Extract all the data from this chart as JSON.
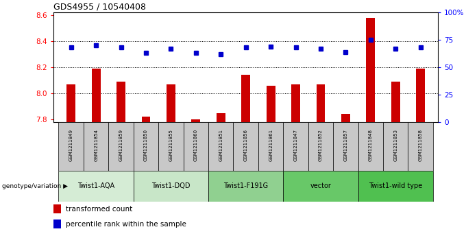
{
  "title": "GDS4955 / 10540408",
  "samples": [
    "GSM1211849",
    "GSM1211854",
    "GSM1211859",
    "GSM1211850",
    "GSM1211855",
    "GSM1211860",
    "GSM1211851",
    "GSM1211856",
    "GSM1211861",
    "GSM1211847",
    "GSM1211852",
    "GSM1211857",
    "GSM1211848",
    "GSM1211853",
    "GSM1211858"
  ],
  "red_values": [
    8.07,
    8.19,
    8.09,
    7.82,
    8.07,
    7.8,
    7.85,
    8.14,
    8.06,
    8.07,
    8.07,
    7.84,
    8.58,
    8.09,
    8.19
  ],
  "blue_values": [
    68,
    70,
    68,
    63,
    67,
    63,
    62,
    68,
    69,
    68,
    67,
    64,
    75,
    67,
    68
  ],
  "ylim_left": [
    7.78,
    8.62
  ],
  "ylim_right": [
    0,
    100
  ],
  "yticks_left": [
    7.8,
    8.0,
    8.2,
    8.4,
    8.6
  ],
  "yticks_right": [
    0,
    25,
    50,
    75,
    100
  ],
  "ytick_labels_right": [
    "0",
    "25",
    "50",
    "75",
    "100%"
  ],
  "groups": [
    {
      "label": "Twist1-AQA",
      "start": 0,
      "end": 3,
      "color": "#d5ecd5"
    },
    {
      "label": "Twist1-DQD",
      "start": 3,
      "end": 6,
      "color": "#c8e6c8"
    },
    {
      "label": "Twist1-F191G",
      "start": 6,
      "end": 9,
      "color": "#90d090"
    },
    {
      "label": "vector",
      "start": 9,
      "end": 12,
      "color": "#68c868"
    },
    {
      "label": "Twist1-wild type",
      "start": 12,
      "end": 15,
      "color": "#50c050"
    }
  ],
  "bar_color": "#cc0000",
  "dot_color": "#0000cc",
  "bg_color": "#c8c8c8",
  "legend_red": "transformed count",
  "legend_blue": "percentile rank within the sample",
  "genotype_label": "genotype/variation"
}
